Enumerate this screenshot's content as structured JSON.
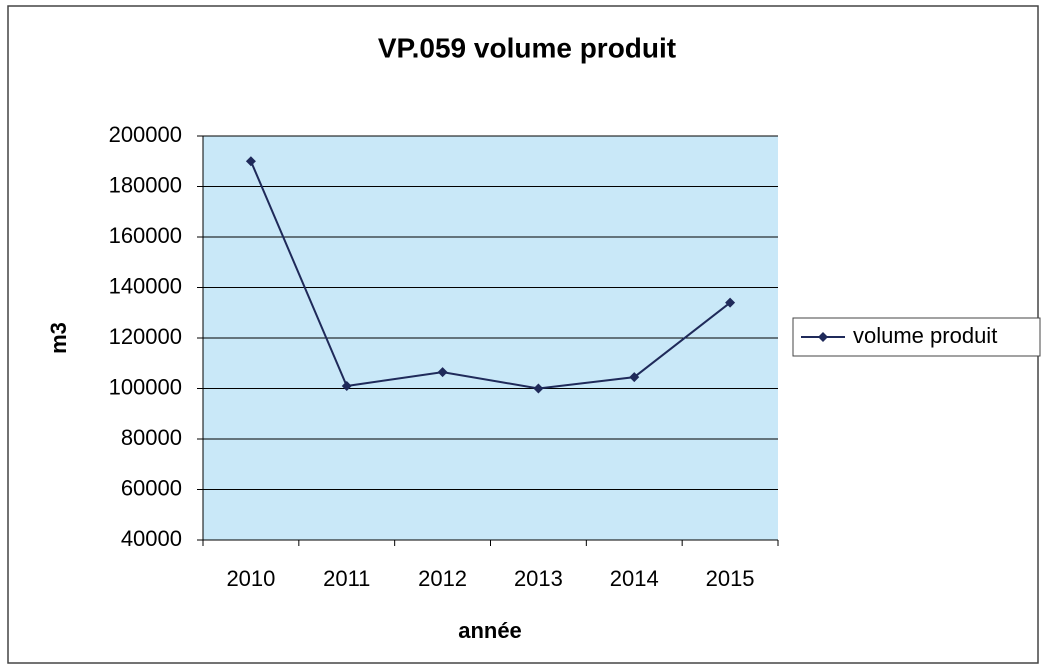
{
  "chart_data": {
    "type": "line",
    "title": "VP.059 volume produit",
    "x_label": "année",
    "y_label": "m3",
    "categories": [
      "2010",
      "2011",
      "2012",
      "2013",
      "2014",
      "2015"
    ],
    "series": [
      {
        "name": "volume produit",
        "color": "#1f2a5a",
        "values": [
          190000,
          101000,
          106500,
          100000,
          104500,
          134000
        ]
      }
    ],
    "ylim": [
      40000,
      200000
    ],
    "yticks": [
      40000,
      60000,
      80000,
      100000,
      120000,
      140000,
      160000,
      180000,
      200000
    ],
    "grid": true,
    "legend": "right"
  }
}
